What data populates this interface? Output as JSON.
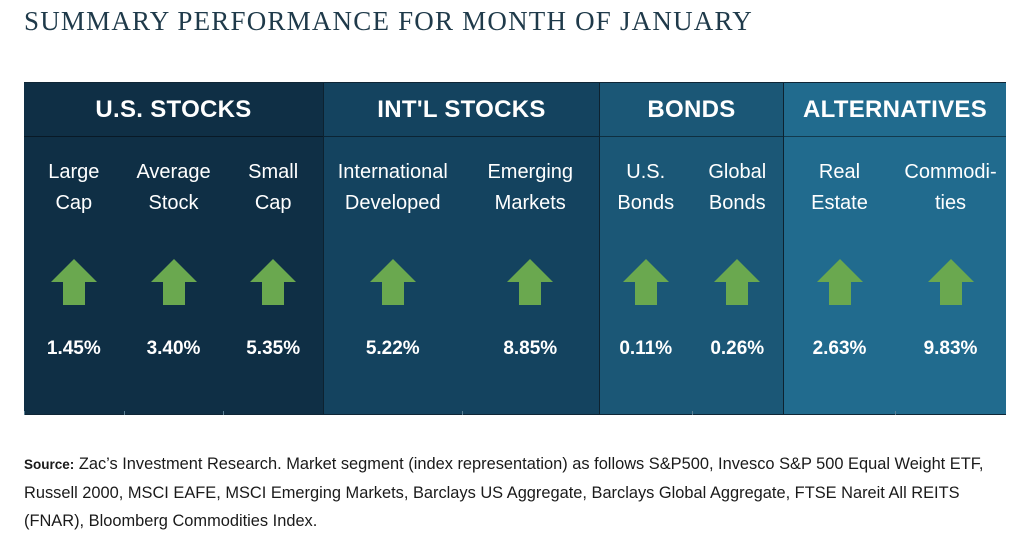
{
  "title": "SUMMARY PERFORMANCE FOR MONTH OF JANUARY",
  "arrow_color": "#6aa84f",
  "groups": [
    {
      "name": "U.S. STOCKS",
      "color": "#0f2f45",
      "columns": [
        {
          "label": "Large\nCap",
          "direction": "up",
          "value": "1.45%"
        },
        {
          "label": "Average\nStock",
          "direction": "up",
          "value": "3.40%"
        },
        {
          "label": "Small\nCap",
          "direction": "up",
          "value": "5.35%"
        }
      ]
    },
    {
      "name": "INT'L STOCKS",
      "color": "#14435f",
      "columns": [
        {
          "label": "International\nDeveloped",
          "direction": "up",
          "value": "5.22%"
        },
        {
          "label": "Emerging\nMarkets",
          "direction": "up",
          "value": "8.85%"
        }
      ]
    },
    {
      "name": "BONDS",
      "color": "#1b5776",
      "columns": [
        {
          "label": "U.S.\nBonds",
          "direction": "up",
          "value": "0.11%"
        },
        {
          "label": "Global\nBonds",
          "direction": "up",
          "value": "0.26%"
        }
      ]
    },
    {
      "name": "ALTERNATIVES",
      "color": "#216b8e",
      "columns": [
        {
          "label": "Real\nEstate",
          "direction": "up",
          "value": "2.63%"
        },
        {
          "label": "Commodi-\nties",
          "direction": "up",
          "value": "9.83%"
        }
      ]
    }
  ],
  "source": {
    "label": "Source:",
    "text": " Zac’s Investment Research. Market segment (index representation) as follows S&P500, Invesco S&P 500 Equal Weight ETF, Russell 2000, MSCI EAFE, MSCI Emerging Markets, Barclays US Aggregate, Barclays Global Aggregate, FTSE Nareit All REITS (FNAR), Bloomberg Commodities Index."
  }
}
